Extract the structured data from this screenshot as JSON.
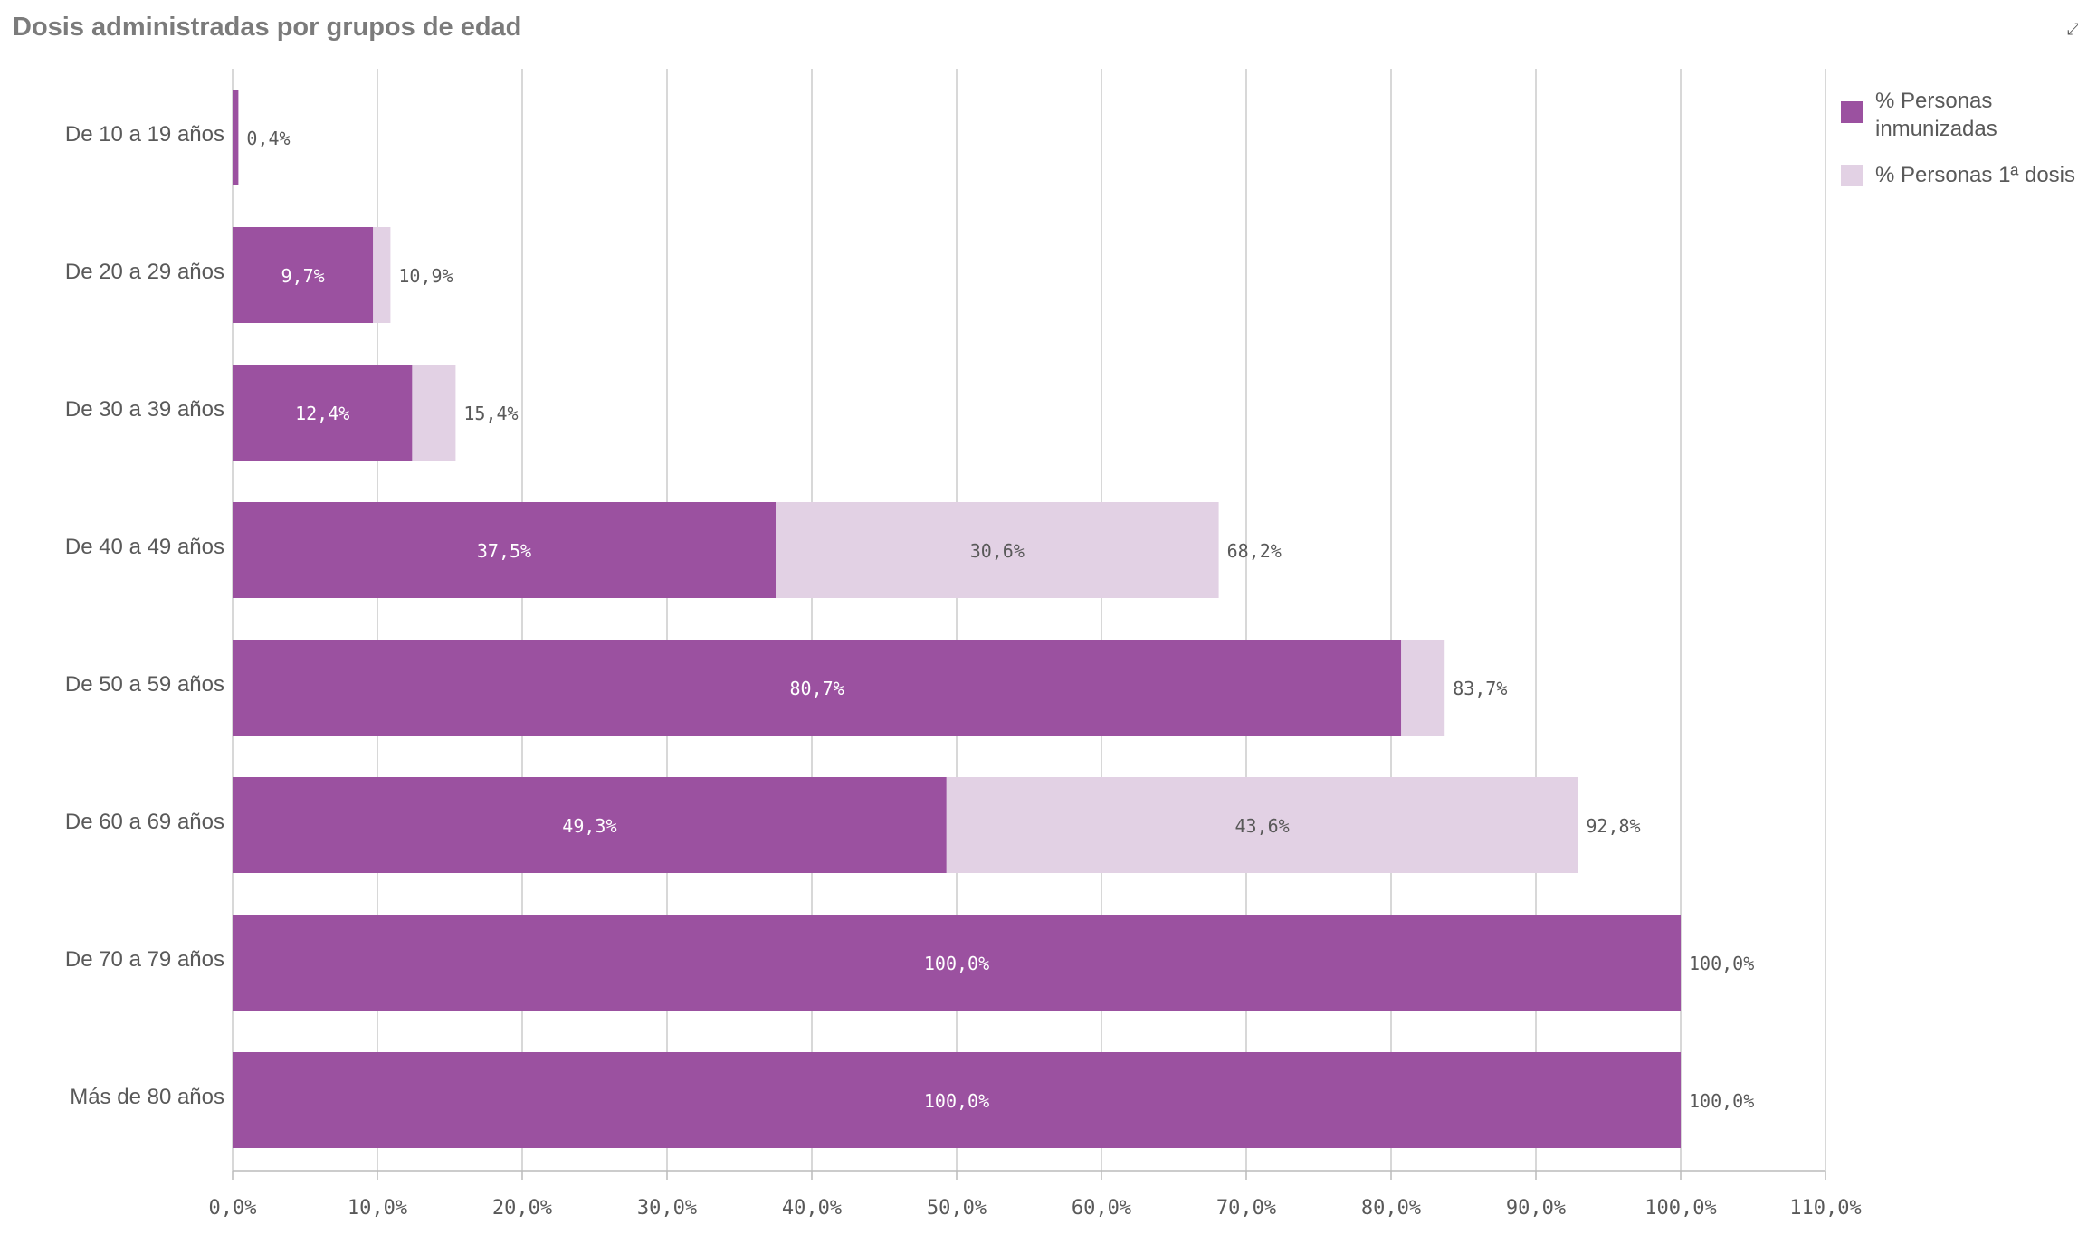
{
  "title": "Dosis administradas por grupos de edad",
  "corner_icon": "expand-icon",
  "colors": {
    "immunized": "#9b51a0",
    "first_dose": "#e2d1e4",
    "grid": "#cccccc",
    "axis": "#bbbbbb",
    "text": "#595959",
    "label_inside": "#ffffff"
  },
  "legend": [
    {
      "label": "% Personas inmunizadas",
      "color": "#9b51a0"
    },
    {
      "label": "% Personas 1ª dosis",
      "color": "#e2d1e4"
    }
  ],
  "chart_data": {
    "type": "bar",
    "orientation": "horizontal",
    "stacked": true,
    "title": "Dosis administradas por grupos de edad",
    "categories": [
      "De 10 a 19 años",
      "De 20 a 29 años",
      "De 30 a 39 años",
      "De 40 a 49 años",
      "De 50 a 59 años",
      "De 60 a 69 años",
      "De 70 a 79 años",
      "Más de 80 años"
    ],
    "series": [
      {
        "name": "% Personas inmunizadas",
        "values": [
          0.4,
          9.7,
          12.4,
          37.5,
          80.7,
          49.3,
          100.0,
          100.0
        ]
      },
      {
        "name": "% Personas 1ª dosis",
        "values": [
          0.0,
          1.2,
          3.0,
          30.6,
          3.0,
          43.6,
          0.0,
          0.0
        ]
      }
    ],
    "inner_labels": [
      {
        "series": 0,
        "labels": [
          "",
          "9,7%",
          "12,4%",
          "37,5%",
          "80,7%",
          "49,3%",
          "100,0%",
          "100,0%"
        ]
      },
      {
        "series": 1,
        "labels": [
          "",
          "",
          "",
          "30,6%",
          "",
          "43,6%",
          "",
          ""
        ]
      }
    ],
    "total_labels": [
      "0,4%",
      "10,9%",
      "15,4%",
      "68,2%",
      "83,7%",
      "92,8%",
      "100,0%",
      "100,0%"
    ],
    "xlim": [
      0,
      110
    ],
    "xticks": [
      0,
      10,
      20,
      30,
      40,
      50,
      60,
      70,
      80,
      90,
      100,
      110
    ],
    "xtick_labels": [
      "0,0%",
      "10,0%",
      "20,0%",
      "30,0%",
      "40,0%",
      "50,0%",
      "60,0%",
      "70,0%",
      "80,0%",
      "90,0%",
      "100,0%",
      "110,0%"
    ],
    "grid": true,
    "legend_position": "top-right"
  }
}
